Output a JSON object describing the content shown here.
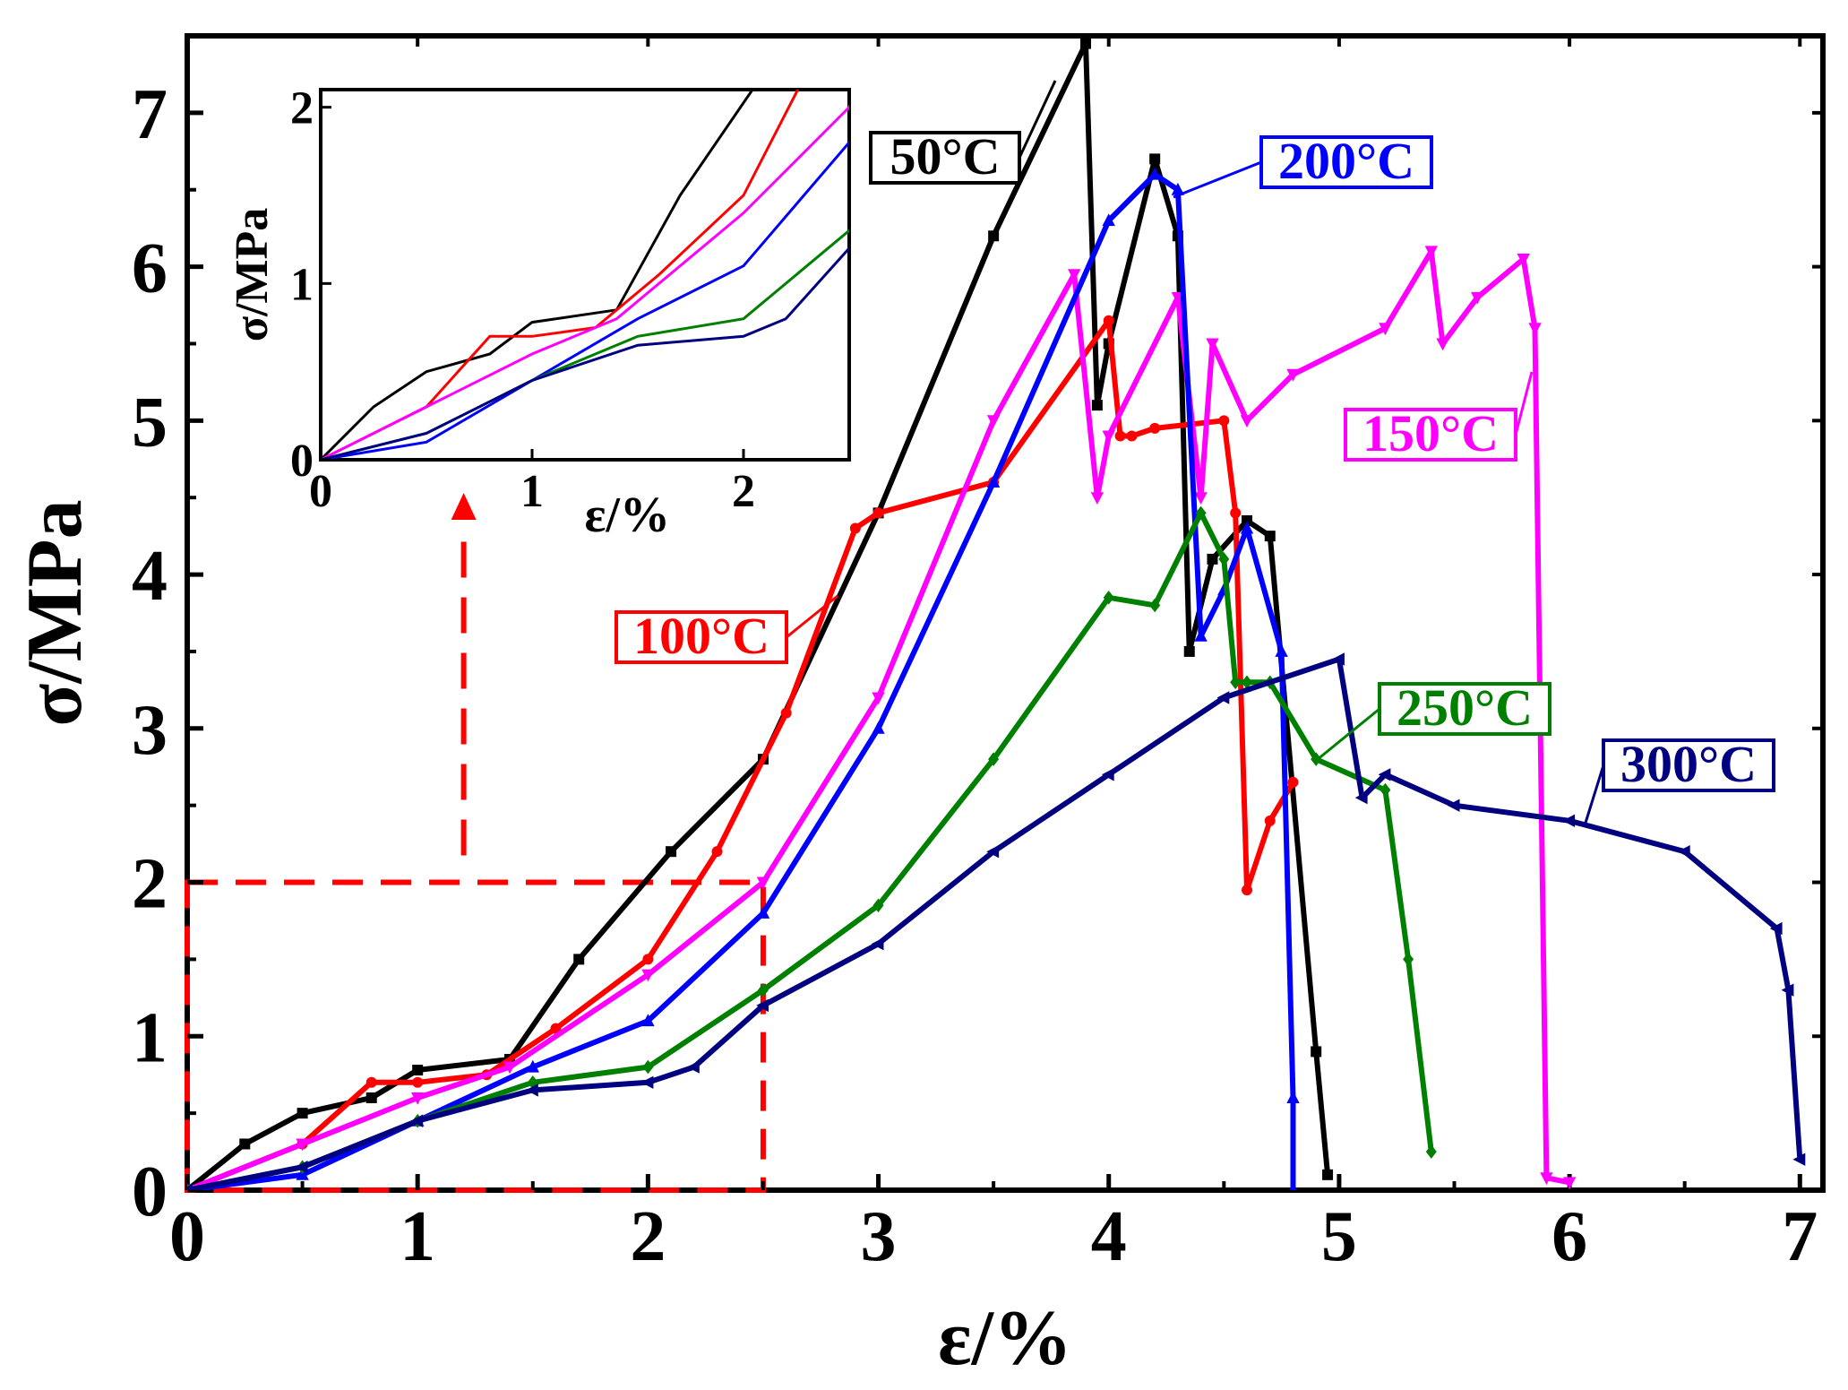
{
  "chart_data": {
    "type": "line",
    "title": "",
    "xlabel": "ε/%",
    "ylabel": "σ/MPa",
    "xlim": [
      0,
      7.1
    ],
    "ylim": [
      0,
      7.5
    ],
    "xticks": [
      "0",
      "1",
      "2",
      "3",
      "4",
      "5",
      "6",
      "7"
    ],
    "yticks": [
      "0",
      "1",
      "2",
      "3",
      "4",
      "5",
      "6",
      "7"
    ],
    "grid": false,
    "zoom_region": {
      "x": [
        0,
        2.5
      ],
      "y": [
        0,
        2
      ]
    },
    "inset": {
      "xlabel": "ε/%",
      "ylabel": "σ/MPa",
      "xlim": [
        0,
        2.5
      ],
      "ylim": [
        0,
        2.1
      ],
      "xticks": [
        "0",
        "1",
        "2"
      ],
      "yticks": [
        "0",
        "1",
        "2"
      ]
    },
    "series": [
      {
        "name": "50°C",
        "color": "#000000",
        "marker": "square",
        "x": [
          0,
          0.25,
          0.5,
          0.8,
          1.0,
          1.4,
          1.7,
          2.1,
          2.5,
          3.0,
          3.5,
          3.9,
          3.95,
          4.0,
          4.2,
          4.3,
          4.35,
          4.45,
          4.6,
          4.7,
          4.9,
          4.95
        ],
        "y": [
          0,
          0.3,
          0.5,
          0.6,
          0.78,
          0.85,
          1.5,
          2.2,
          2.8,
          4.4,
          6.2,
          7.45,
          5.1,
          5.5,
          6.7,
          6.2,
          3.5,
          4.1,
          4.35,
          4.25,
          0.9,
          0.1
        ]
      },
      {
        "name": "100°C",
        "color": "#ff0000",
        "marker": "circle",
        "x": [
          0,
          0.5,
          0.8,
          1.0,
          1.3,
          1.6,
          2.0,
          2.3,
          2.6,
          2.9,
          3.0,
          3.5,
          4.0,
          4.05,
          4.1,
          4.2,
          4.5,
          4.55,
          4.6,
          4.7,
          4.8
        ],
        "y": [
          0,
          0.3,
          0.7,
          0.7,
          0.75,
          1.05,
          1.5,
          2.2,
          3.1,
          4.3,
          4.4,
          4.6,
          5.65,
          4.9,
          4.9,
          4.95,
          5.0,
          4.4,
          1.95,
          2.4,
          2.65
        ]
      },
      {
        "name": "150°C",
        "color": "#ff00ff",
        "marker": "triangle-down",
        "x": [
          0,
          0.5,
          1.0,
          1.4,
          2.0,
          2.5,
          3.0,
          3.5,
          3.85,
          3.95,
          4.0,
          4.3,
          4.4,
          4.45,
          4.6,
          4.8,
          5.2,
          5.4,
          5.45,
          5.6,
          5.8,
          5.85,
          5.9,
          6.0
        ],
        "y": [
          0,
          0.3,
          0.6,
          0.8,
          1.4,
          2.0,
          3.2,
          5.0,
          5.95,
          4.5,
          4.9,
          5.8,
          4.5,
          5.5,
          5.0,
          5.3,
          5.6,
          6.1,
          5.5,
          5.8,
          6.05,
          5.6,
          0.08,
          0.05
        ]
      },
      {
        "name": "200°C",
        "color": "#0000ff",
        "marker": "triangle-up",
        "x": [
          0,
          0.5,
          1.0,
          1.5,
          2.0,
          2.5,
          3.0,
          3.5,
          4.0,
          4.2,
          4.3,
          4.4,
          4.5,
          4.6,
          4.75,
          4.8,
          4.8
        ],
        "y": [
          0,
          0.1,
          0.45,
          0.8,
          1.1,
          1.8,
          3.0,
          4.6,
          6.3,
          6.6,
          6.5,
          3.6,
          3.9,
          4.3,
          3.5,
          0.6,
          0.0
        ]
      },
      {
        "name": "250°C",
        "color": "#008000",
        "marker": "diamond",
        "x": [
          0,
          0.5,
          1.0,
          1.5,
          2.0,
          2.5,
          3.0,
          3.5,
          4.0,
          4.2,
          4.4,
          4.5,
          4.55,
          4.6,
          4.7,
          4.9,
          5.2,
          5.3,
          5.4
        ],
        "y": [
          0,
          0.15,
          0.45,
          0.7,
          0.8,
          1.3,
          1.85,
          2.8,
          3.85,
          3.8,
          4.4,
          4.1,
          3.3,
          3.3,
          3.3,
          2.8,
          2.6,
          1.5,
          0.25
        ]
      },
      {
        "name": "300°C",
        "color": "#000080",
        "marker": "triangle-left",
        "x": [
          0,
          0.5,
          1.0,
          1.5,
          2.0,
          2.2,
          2.5,
          3.0,
          3.5,
          4.0,
          4.5,
          5.0,
          5.1,
          5.2,
          5.5,
          6.0,
          6.5,
          6.9,
          6.95,
          7.0
        ],
        "y": [
          0,
          0.15,
          0.45,
          0.65,
          0.7,
          0.8,
          1.2,
          1.6,
          2.2,
          2.7,
          3.2,
          3.45,
          2.55,
          2.7,
          2.5,
          2.4,
          2.2,
          1.7,
          1.3,
          0.2
        ]
      }
    ]
  }
}
